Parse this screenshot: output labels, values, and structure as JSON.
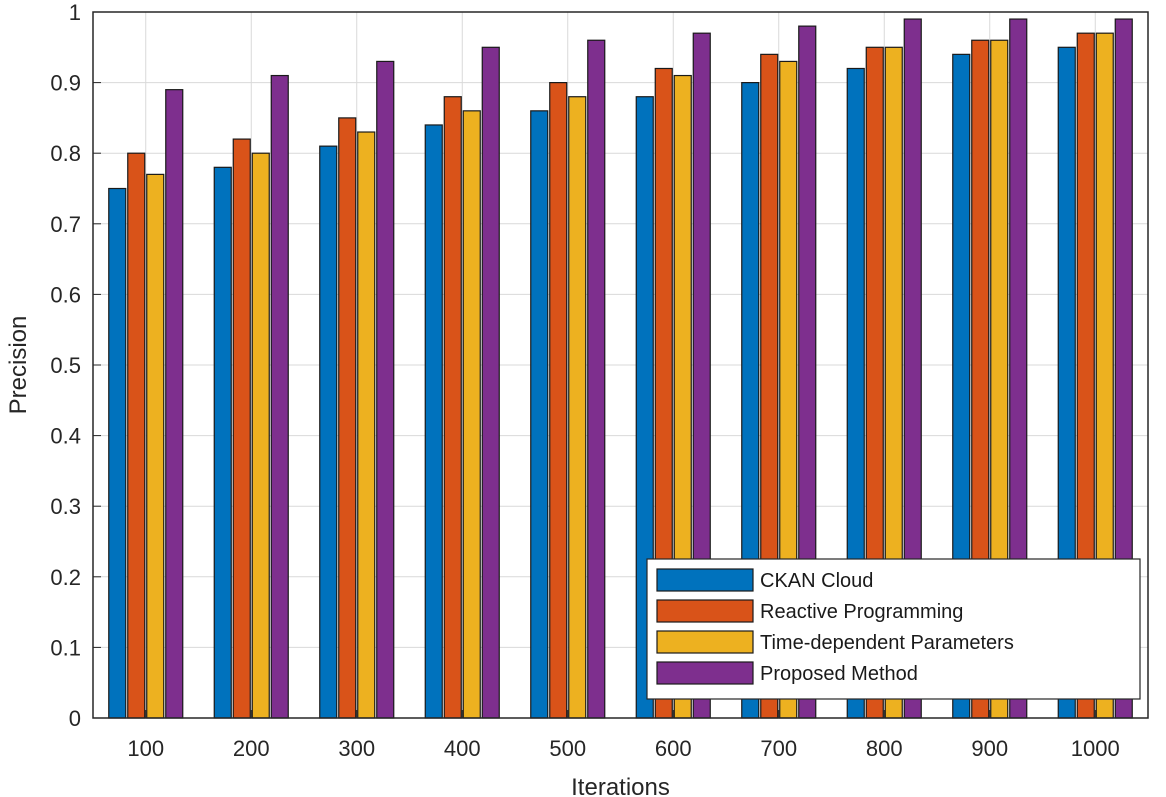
{
  "chart_data": {
    "type": "bar",
    "title": "",
    "xlabel": "Iterations",
    "ylabel": "Precision",
    "ylim": [
      0,
      1
    ],
    "yticks": [
      "0",
      "0.1",
      "0.2",
      "0.3",
      "0.4",
      "0.5",
      "0.6",
      "0.7",
      "0.8",
      "0.9",
      "1"
    ],
    "grid": true,
    "legend_position": "bottom-right",
    "categories": [
      "100",
      "200",
      "300",
      "400",
      "500",
      "600",
      "700",
      "800",
      "900",
      "1000"
    ],
    "series": [
      {
        "name": "CKAN Cloud",
        "color": "#0072BD",
        "values": [
          0.75,
          0.78,
          0.81,
          0.84,
          0.86,
          0.88,
          0.9,
          0.92,
          0.94,
          0.95
        ]
      },
      {
        "name": "Reactive Programming",
        "color": "#D95319",
        "values": [
          0.8,
          0.82,
          0.85,
          0.88,
          0.9,
          0.92,
          0.94,
          0.95,
          0.96,
          0.97
        ]
      },
      {
        "name": "Time-dependent Parameters",
        "color": "#EDB120",
        "values": [
          0.77,
          0.8,
          0.83,
          0.86,
          0.88,
          0.91,
          0.93,
          0.95,
          0.96,
          0.97
        ]
      },
      {
        "name": "Proposed Method",
        "color": "#7E2F8E",
        "values": [
          0.89,
          0.91,
          0.93,
          0.95,
          0.96,
          0.97,
          0.98,
          0.99,
          0.99,
          0.99
        ]
      }
    ]
  }
}
